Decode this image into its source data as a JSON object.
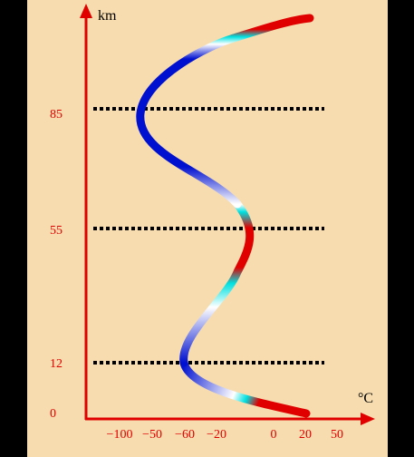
{
  "axis": {
    "y_unit": "km",
    "x_unit": "°C",
    "y_labels": [
      "85",
      "55",
      "12",
      "0"
    ],
    "x_labels": [
      "−100",
      "−50",
      "−60",
      "−20",
      "0",
      "20",
      "50"
    ]
  }
}
